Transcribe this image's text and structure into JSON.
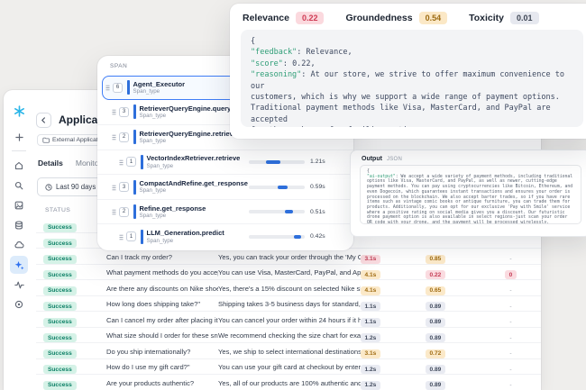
{
  "sidebar": {
    "icons": [
      "snowflake-logo",
      "plus",
      "home",
      "search",
      "image",
      "database",
      "cloud",
      "ai-sparkle",
      "activity",
      "settings"
    ],
    "active_icon": "ai-sparkle",
    "logo_color": "#29b5e8"
  },
  "header": {
    "title": "Applicat",
    "tag": "External Applicati",
    "tabs": [
      {
        "label": "Details",
        "active": true
      },
      {
        "label": "Monitoring",
        "active": false
      }
    ],
    "time_filter": "Last 90 days"
  },
  "table": {
    "columns": [
      "STATUS",
      "INPUT"
    ],
    "rows": [
      {
        "status": "Success",
        "input": "Do yo",
        "output": "",
        "latency": null,
        "score1": null,
        "score2": null
      },
      {
        "status": "Success",
        "input": "What",
        "output": "",
        "latency": null,
        "score1": null,
        "score2": null
      },
      {
        "status": "Success",
        "input": "Can I track my order?",
        "output": "Yes, you can track your order through the 'My Orders...",
        "latency": {
          "text": "3.1s",
          "tone": "pink"
        },
        "score1": {
          "text": "0.85",
          "tone": "amber"
        },
        "score2": {
          "text": "-",
          "tone": "plain"
        }
      },
      {
        "status": "Success",
        "input": "What payment methods do you accept?",
        "output": "You can use Visa, MasterCard, PayPal, and Apple Pay...",
        "latency": {
          "text": "4.1s",
          "tone": "amber"
        },
        "score1": {
          "text": "0.22",
          "tone": "pink"
        },
        "score2": {
          "text": "0",
          "tone": "pink"
        }
      },
      {
        "status": "Success",
        "input": "Are there any discounts on Nike shoes?",
        "output": "Yes, there's a 15% discount on selected Nike shoes. U...",
        "latency": {
          "text": "4.1s",
          "tone": "amber"
        },
        "score1": {
          "text": "0.65",
          "tone": "amber"
        },
        "score2": {
          "text": "-",
          "tone": "plain"
        }
      },
      {
        "status": "Success",
        "input": "How long does shipping take?\"",
        "output": "Shipping takes 3-5 business days for standard, and 1...",
        "latency": {
          "text": "1.1s",
          "tone": "gray"
        },
        "score1": {
          "text": "0.89",
          "tone": "gray"
        },
        "score2": {
          "text": "-",
          "tone": "plain"
        }
      },
      {
        "status": "Success",
        "input": "Can I cancel my order after placing it?",
        "output": "You can cancel your order within 24 hours if it hasn't...",
        "latency": {
          "text": "1.1s",
          "tone": "gray"
        },
        "score1": {
          "text": "0.89",
          "tone": "gray"
        },
        "score2": {
          "text": "-",
          "tone": "plain"
        }
      },
      {
        "status": "Success",
        "input": "What size should I order for these sneakers?",
        "output": "We recommend checking the size chart for exact mea...",
        "latency": {
          "text": "1.2s",
          "tone": "gray"
        },
        "score1": {
          "text": "0.89",
          "tone": "gray"
        },
        "score2": {
          "text": "-",
          "tone": "plain"
        }
      },
      {
        "status": "Success",
        "input": "Do you ship internationally?",
        "output": "Yes, we ship to select international destinations. Addit...",
        "latency": {
          "text": "3.1s",
          "tone": "amber"
        },
        "score1": {
          "text": "0.72",
          "tone": "amber"
        },
        "score2": {
          "text": "-",
          "tone": "plain"
        }
      },
      {
        "status": "Success",
        "input": "How do I use my gift card?\"",
        "output": "You can use your gift card at checkout by entering th...",
        "latency": {
          "text": "1.2s",
          "tone": "gray"
        },
        "score1": {
          "text": "0.89",
          "tone": "gray"
        },
        "score2": {
          "text": "-",
          "tone": "plain"
        }
      },
      {
        "status": "Success",
        "input": "Are your products authentic?",
        "output": "Yes, all of our products are 100% authentic and sourc...",
        "latency": {
          "text": "1.2s",
          "tone": "gray"
        },
        "score1": {
          "text": "0.89",
          "tone": "gray"
        },
        "score2": {
          "text": "-",
          "tone": "plain"
        }
      }
    ]
  },
  "span_panel": {
    "label": "SPAN",
    "accent_color": "#2e6fdb",
    "rows": [
      {
        "num": "6",
        "name": "Agent_Executor",
        "type": "Span_type",
        "indent": 0,
        "selected": true,
        "bar": null,
        "time": ""
      },
      {
        "num": "3",
        "name": "RetrieverQueryEngine.query",
        "type": "Span_type",
        "indent": 1,
        "bar": null,
        "time": ""
      },
      {
        "num": "2",
        "name": "RetrieverQueryEngine.retrieve",
        "type": "Span_type",
        "indent": 1,
        "bar": null,
        "time": ""
      },
      {
        "num": "1",
        "name": "VectorIndexRetriever.retrieve",
        "type": "Span_type",
        "indent": 2,
        "bar": {
          "start": 30,
          "width": 26
        },
        "time": "1.21s"
      },
      {
        "num": "3",
        "name": "CompactAndRefine.get_response",
        "type": "Span_type",
        "indent": 1,
        "bar": {
          "start": 52,
          "width": 17
        },
        "time": "0.59s"
      },
      {
        "num": "2",
        "name": "Refine.get_response",
        "type": "Span_type",
        "indent": 1,
        "bar": {
          "start": 65,
          "width": 14
        },
        "time": "0.51s"
      },
      {
        "num": "1",
        "name": "LLM_Generation.predict",
        "type": "Span_type",
        "indent": 2,
        "bar": {
          "start": 80,
          "width": 14
        },
        "time": "0.42s"
      }
    ]
  },
  "metrics_card": {
    "metrics": [
      {
        "label": "Relevance",
        "badge": {
          "text": "0.22",
          "tone": "pink"
        }
      },
      {
        "label": "Groundedness",
        "badge": {
          "text": "0.54",
          "tone": "amber"
        }
      },
      {
        "label": "Toxicity",
        "badge": {
          "text": "0.01",
          "tone": "gray"
        }
      }
    ],
    "code": {
      "open": "{",
      "feedback_key": "\"feedback\"",
      "feedback_rest": ": Relevance,",
      "score_key": "\"score\"",
      "score_rest": ": 0.22,",
      "reasoning_key": "\"reasoning\"",
      "reasoning_rest": ": At our store, we strive to offer maximum convenience to our\ncustomers, which is why we support a wide range of payment options.\nTraditional payment methods like Visa, MasterCard, and PayPal are accepted\nfor those who prefer familiar options.",
      "close": "}"
    }
  },
  "output_card": {
    "title": "Output",
    "format": "JSON",
    "code": {
      "open": "{",
      "key": "\"ai-output\"",
      "rest": ": We accept a wide variety of payment methods, including traditional options like Visa, MasterCard, and PayPal, as well as newer, cutting-edge payment methods. You can pay using cryptocurrencies like Bitcoin, Ethereum, and even Dogecoin, which guarantees instant transactions and ensures your order is processed on the blockchain. We also accept barter trades, so if you have rare items such as vintage comic books or antique furniture, you can trade them for products. Additionally, you can opt for our exclusive 'Pay with Smile' service where a positive rating on social media gives you a discount. Our futuristic drone payment option is also available in select regions-just scan your order QR code with your drone, and the payment will be processed wirelessly.",
      "close": "}"
    }
  },
  "colors": {
    "accent_blue": "#2e6fdb",
    "success_bg": "#d5f2e7",
    "success_text": "#0e8066",
    "pink_bg": "#fadbe0",
    "pink_text": "#c43d55",
    "amber_bg": "#fbe9c9",
    "amber_text": "#a06c13",
    "code_key_green": "#2f9e77"
  }
}
